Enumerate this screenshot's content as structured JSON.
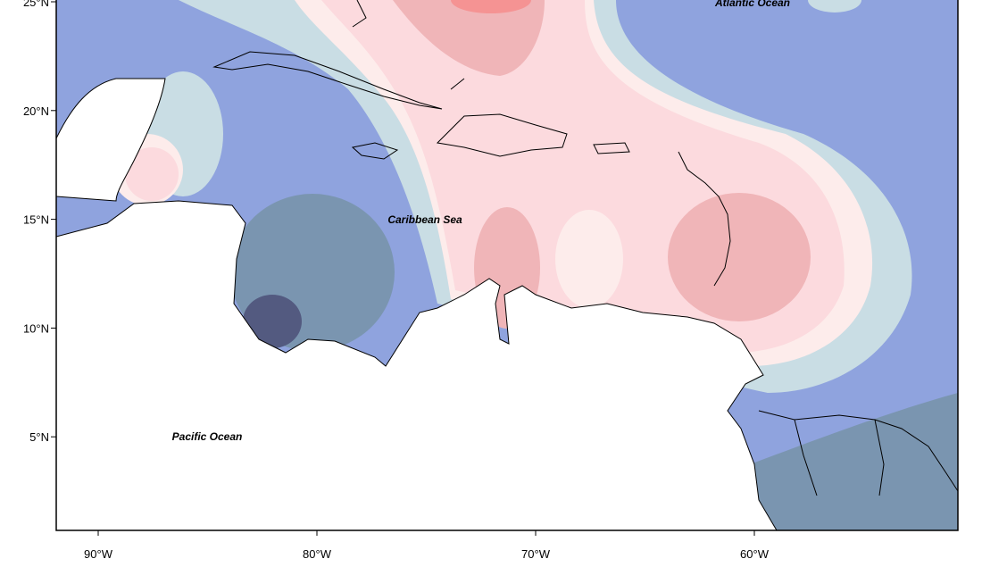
{
  "axes": {
    "y_labels": [
      "25°N",
      "20°N",
      "15°N",
      "10°N",
      "5°N"
    ],
    "x_labels": [
      "90°W",
      "80°W",
      "70°W",
      "60°W"
    ]
  },
  "labels": {
    "atlantic": "Atlantic Ocean",
    "caribbean": "Caribbean Sea",
    "pacific": "Pacific Ocean"
  }
}
